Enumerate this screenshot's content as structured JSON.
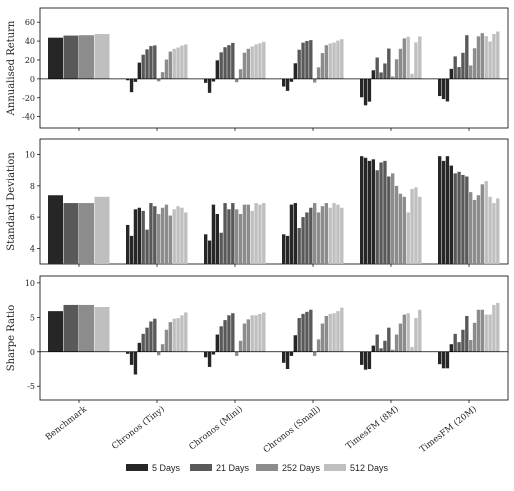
{
  "chart_data": {
    "type": "bar",
    "categories": [
      "Benchmark",
      "Chronos (Tiny)",
      "Chronos (Mini)",
      "Chronos (Small)",
      "TimesFM (8M)",
      "TimesFM (20M)"
    ],
    "horizons": [
      {
        "name": "5 Days",
        "color": "#262626"
      },
      {
        "name": "21 Days",
        "color": "#595959"
      },
      {
        "name": "252 Days",
        "color": "#8c8c8c"
      },
      {
        "name": "512 Days",
        "color": "#bfbfbf"
      }
    ],
    "panels": [
      {
        "ylabel": "Annualised Return",
        "ylim": [
          -52,
          75
        ],
        "yticks": [
          -40,
          -20,
          0,
          20,
          40,
          60
        ],
        "zero_line": true,
        "groups": [
          {
            "category": "Benchmark",
            "values": [
              43.6,
              45.8,
              46.2,
              47.5
            ]
          },
          {
            "category": "Chronos (Tiny)",
            "values": [
              -1.5,
              -14.1,
              -3.2,
              17.2,
              25.6,
              31.2,
              34.7,
              35.4,
              -2.6,
              7.1,
              20.5,
              28.9,
              31.8,
              33.2,
              35.2,
              36.4
            ]
          },
          {
            "category": "Chronos (Mini)",
            "values": [
              -4.2,
              -14.8,
              -2.8,
              19.6,
              28.1,
              33.5,
              35.7,
              38.1,
              -3.6,
              10.2,
              27.7,
              31.8,
              34.3,
              36.5,
              37.6,
              39.2
            ]
          },
          {
            "category": "Chronos (Small)",
            "values": [
              -8.1,
              -12.7,
              -3.1,
              16.5,
              30.8,
              38.3,
              40.1,
              41.0,
              -3.9,
              12.2,
              27.3,
              35.6,
              37.5,
              38.4,
              40.5,
              42.0
            ]
          },
          {
            "category": "TimesFM (8M)",
            "values": [
              -19.5,
              -28.0,
              -24.1,
              9.1,
              22.6,
              6.8,
              16.3,
              32.1,
              2.5,
              20.7,
              31.8,
              42.8,
              44.6,
              5.3,
              38.6,
              44.9
            ]
          },
          {
            "category": "TimesFM (20M)",
            "values": [
              -18.2,
              -21.4,
              -23.9,
              10.6,
              23.8,
              12.5,
              27.6,
              46.2,
              14.2,
              32.4,
              45.0,
              48.4,
              45.2,
              39.6,
              47.5,
              50.1
            ]
          }
        ]
      },
      {
        "ylabel": "Standard Deviation",
        "ylim": [
          3,
          11
        ],
        "yticks": [
          4,
          6,
          8,
          10
        ],
        "zero_line": false,
        "groups": [
          {
            "category": "Benchmark",
            "values": [
              7.4,
              6.9,
              6.9,
              7.3
            ]
          },
          {
            "category": "Chronos (Tiny)",
            "values": [
              5.5,
              4.8,
              6.5,
              6.6,
              6.4,
              5.2,
              6.9,
              6.7,
              6.2,
              6.6,
              6.8,
              6.1,
              6.5,
              6.7,
              6.6,
              6.3
            ]
          },
          {
            "category": "Chronos (Mini)",
            "values": [
              4.9,
              4.5,
              6.8,
              6.2,
              5.0,
              6.9,
              6.5,
              6.9,
              6.5,
              6.2,
              6.8,
              6.8,
              6.4,
              6.9,
              6.8,
              6.9
            ]
          },
          {
            "category": "Chronos (Small)",
            "values": [
              4.9,
              4.8,
              6.8,
              6.9,
              5.3,
              6.0,
              6.3,
              6.6,
              6.9,
              6.3,
              6.7,
              6.9,
              6.6,
              6.9,
              6.8,
              6.6
            ]
          },
          {
            "category": "TimesFM (8M)",
            "values": [
              9.9,
              9.8,
              9.6,
              9.7,
              9.0,
              9.5,
              9.6,
              8.6,
              8.8,
              8.0,
              7.5,
              7.3,
              6.3,
              7.8,
              7.9,
              7.3
            ]
          },
          {
            "category": "TimesFM (20M)",
            "values": [
              9.9,
              9.6,
              9.9,
              9.3,
              8.8,
              8.9,
              8.7,
              8.6,
              7.6,
              7.1,
              7.4,
              8.1,
              8.3,
              7.3,
              6.9,
              7.2
            ]
          }
        ]
      },
      {
        "ylabel": "Sharpe Ratio",
        "ylim": [
          -7,
          11
        ],
        "yticks": [
          -5,
          0,
          5,
          10
        ],
        "zero_line": true,
        "groups": [
          {
            "category": "Benchmark",
            "values": [
              5.9,
              6.8,
              6.8,
              6.5
            ]
          },
          {
            "category": "Chronos (Tiny)",
            "values": [
              -0.3,
              -1.9,
              -3.3,
              1.3,
              2.6,
              3.5,
              4.4,
              4.8,
              -0.5,
              1.1,
              3.2,
              4.3,
              4.8,
              4.9,
              5.3,
              5.7
            ]
          },
          {
            "category": "Chronos (Mini)",
            "values": [
              -0.8,
              -2.2,
              -0.4,
              2.5,
              3.7,
              4.6,
              5.3,
              5.6,
              -0.6,
              1.6,
              4.1,
              4.7,
              5.3,
              5.3,
              5.5,
              5.7
            ]
          },
          {
            "category": "Chronos (Small)",
            "values": [
              -1.6,
              -2.5,
              -0.6,
              2.4,
              4.9,
              5.5,
              5.8,
              6.1,
              -0.6,
              1.8,
              4.1,
              5.2,
              5.5,
              5.6,
              5.9,
              6.4
            ]
          },
          {
            "category": "TimesFM (8M)",
            "values": [
              -1.9,
              -2.6,
              -2.5,
              0.9,
              2.5,
              0.5,
              1.6,
              3.5,
              0.3,
              2.5,
              4.1,
              5.4,
              5.6,
              0.7,
              4.9,
              6.1
            ]
          },
          {
            "category": "TimesFM (20M)",
            "values": [
              -1.8,
              -2.4,
              -2.4,
              1.1,
              2.6,
              1.4,
              3.2,
              5.2,
              1.7,
              4.2,
              6.1,
              6.1,
              5.4,
              5.4,
              6.8,
              7.1
            ]
          }
        ]
      }
    ],
    "legend_position": "bottom",
    "grid": false
  }
}
